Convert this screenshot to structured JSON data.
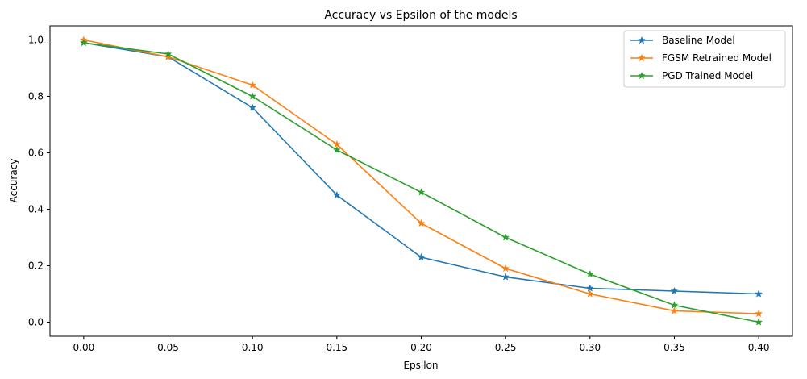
{
  "chart_data": {
    "type": "line",
    "title": "Accuracy vs Epsilon of the models",
    "xlabel": "Epsilon",
    "ylabel": "Accuracy",
    "x": [
      0.0,
      0.05,
      0.1,
      0.15,
      0.2,
      0.25,
      0.3,
      0.35,
      0.4
    ],
    "x_tick_labels": [
      "0.00",
      "0.05",
      "0.10",
      "0.15",
      "0.20",
      "0.25",
      "0.30",
      "0.35",
      "0.40"
    ],
    "y_ticks": [
      0.0,
      0.2,
      0.4,
      0.6,
      0.8,
      1.0
    ],
    "y_tick_labels": [
      "0.0",
      "0.2",
      "0.4",
      "0.6",
      "0.8",
      "1.0"
    ],
    "xlim": [
      -0.02,
      0.42
    ],
    "ylim": [
      -0.05,
      1.05
    ],
    "grid": false,
    "legend_position": "top-right",
    "marker": "star",
    "series": [
      {
        "name": "Baseline Model",
        "color": "#1f77b4",
        "values": [
          0.99,
          0.94,
          0.76,
          0.45,
          0.23,
          0.16,
          0.12,
          0.11,
          0.1
        ]
      },
      {
        "name": "FGSM Retrained Model",
        "color": "#ff7f0e",
        "values": [
          1.0,
          0.94,
          0.84,
          0.63,
          0.35,
          0.19,
          0.1,
          0.04,
          0.03
        ]
      },
      {
        "name": "PGD Trained Model",
        "color": "#2ca02c",
        "values": [
          0.99,
          0.95,
          0.8,
          0.61,
          0.46,
          0.3,
          0.17,
          0.06,
          0.0
        ]
      }
    ]
  }
}
